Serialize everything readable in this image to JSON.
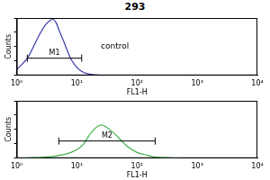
{
  "chart_data": [
    {
      "type": "line",
      "title": "293",
      "log": "x",
      "grid": false,
      "tick_labels": "x",
      "color": "#3a3aa8",
      "x_label": "FL1-H",
      "y_label": "Counts",
      "xlim": [
        1,
        10000
      ],
      "xticks": [
        {
          "value": 1,
          "label": "10⁰"
        },
        {
          "value": 10,
          "label": "10¹"
        },
        {
          "value": 100,
          "label": "10²"
        },
        {
          "value": 1000,
          "label": "10³"
        },
        {
          "value": 10000,
          "label": "10⁴"
        }
      ],
      "ylim": [
        0,
        100
      ],
      "yticks": [
        0,
        25,
        50,
        75,
        100
      ],
      "x": [
        1,
        1.5,
        2,
        2.5,
        3,
        3.5,
        4,
        4.5,
        5,
        6,
        7,
        8,
        10,
        12,
        15,
        20,
        30,
        50,
        100
      ],
      "values": [
        10,
        30,
        55,
        75,
        88,
        95,
        98,
        92,
        80,
        60,
        42,
        28,
        14,
        7,
        3,
        1,
        0,
        0,
        0
      ],
      "markers": [
        {
          "label": "M1",
          "range": [
            1.5,
            12
          ]
        }
      ],
      "annotations": [
        {
          "text": "control"
        }
      ]
    },
    {
      "type": "line",
      "log": "x",
      "grid": false,
      "tick_labels": "x",
      "color": "#3cb043",
      "x_label": "FL1-H",
      "y_label": "Counts",
      "xlim": [
        1,
        10000
      ],
      "xticks": [
        {
          "value": 1,
          "label": "10⁰"
        },
        {
          "value": 10,
          "label": "10¹"
        },
        {
          "value": 100,
          "label": "10²"
        },
        {
          "value": 1000,
          "label": "10³"
        },
        {
          "value": 10000,
          "label": "10⁴"
        }
      ],
      "ylim": [
        0,
        100
      ],
      "yticks": [
        0,
        25,
        50,
        75,
        100
      ],
      "x": [
        1,
        2,
        3,
        4,
        5,
        7,
        10,
        13,
        16,
        20,
        25,
        30,
        40,
        50,
        70,
        100,
        150,
        200,
        300,
        500
      ],
      "values": [
        0,
        1,
        2,
        3,
        5,
        8,
        15,
        25,
        40,
        52,
        58,
        55,
        45,
        35,
        20,
        10,
        5,
        2,
        1,
        0
      ],
      "markers": [
        {
          "label": "M2",
          "range": [
            5,
            200
          ]
        }
      ]
    }
  ]
}
